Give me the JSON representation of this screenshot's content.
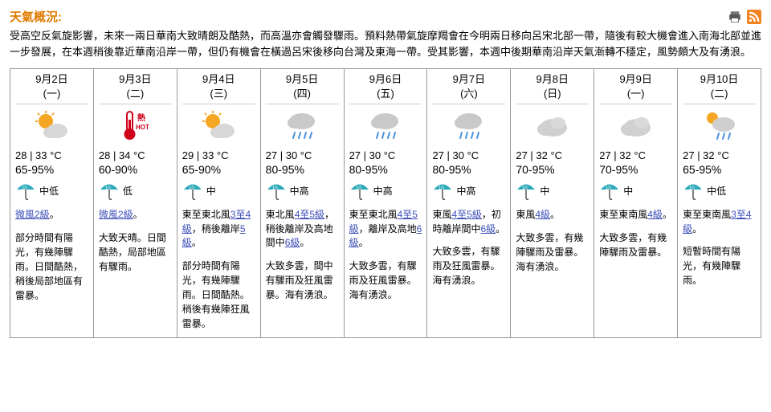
{
  "title": "天氣概況:",
  "overview": "受高空反氣旋影響，未來一兩日華南大致晴朗及酷熱，而高溫亦會觸發驟雨。預料熱帶氣旋摩羯會在今明兩日移向呂宋北部一帶，隨後有較大機會進入南海北部並進一步發展，在本週稍後靠近華南沿岸一帶，但仍有機會在橫過呂宋後移向台灣及東海一帶。受其影響，本週中後期華南沿岸天氣漸轉不穩定，風勢頗大及有湧浪。",
  "days": [
    {
      "date": "9月2日",
      "dow": "(一)",
      "icon": "sunny-cloud",
      "temp": "28 | 33 °C",
      "rh": "65-95%",
      "psr": "中低",
      "wind_pre": "",
      "wind_link": "微風2級",
      "wind_post": "。",
      "desc": "部分時間有陽光，有幾陣驟雨。日間酷熱，稍後局部地區有雷暴。"
    },
    {
      "date": "9月3日",
      "dow": "(二)",
      "icon": "hot",
      "temp": "28 | 34 °C",
      "rh": "60-90%",
      "psr": "低",
      "wind_pre": "",
      "wind_link": "微風2級",
      "wind_post": "。",
      "desc": "大致天晴。日間酷熱，局部地區有驟雨。"
    },
    {
      "date": "9月4日",
      "dow": "(三)",
      "icon": "sunny-cloud",
      "temp": "29 | 33 °C",
      "rh": "65-90%",
      "psr": "中",
      "wind_pre": "東至東北風",
      "wind_link": "3至4級",
      "wind_post": "，稍後離岸",
      "wind_link2": "5級",
      "wind_post2": "。",
      "desc": "部分時間有陽光，有幾陣驟雨。日間酷熱。稍後有幾陣狂風雷暴。"
    },
    {
      "date": "9月5日",
      "dow": "(四)",
      "icon": "rain",
      "temp": "27 | 30 °C",
      "rh": "80-95%",
      "psr": "中高",
      "wind_pre": "東北風",
      "wind_link": "4至5級",
      "wind_post": "，稍後離岸及高地間中",
      "wind_link2": "6級",
      "wind_post2": "。",
      "desc": "大致多雲，間中有驟雨及狂風雷暴。海有湧浪。"
    },
    {
      "date": "9月6日",
      "dow": "(五)",
      "icon": "rain",
      "temp": "27 | 30 °C",
      "rh": "80-95%",
      "psr": "中高",
      "wind_pre": "東至東北風",
      "wind_link": "4至5級",
      "wind_post": "，離岸及高地",
      "wind_link2": "6級",
      "wind_post2": "。",
      "desc": "大致多雲，有驟雨及狂風雷暴。海有湧浪。"
    },
    {
      "date": "9月7日",
      "dow": "(六)",
      "icon": "rain",
      "temp": "27 | 30 °C",
      "rh": "80-95%",
      "psr": "中高",
      "wind_pre": "東風",
      "wind_link": "4至5級",
      "wind_post": "，初時離岸間中",
      "wind_link2": "6級",
      "wind_post2": "。",
      "desc": "大致多雲，有驟雨及狂風雷暴。海有湧浪。"
    },
    {
      "date": "9月8日",
      "dow": "(日)",
      "icon": "cloud",
      "temp": "27 | 32 °C",
      "rh": "70-95%",
      "psr": "中",
      "wind_pre": "東風",
      "wind_link": "4級",
      "wind_post": "。",
      "desc": "大致多雲，有幾陣驟雨及雷暴。海有湧浪。"
    },
    {
      "date": "9月9日",
      "dow": "(一)",
      "icon": "cloud",
      "temp": "27 | 32 °C",
      "rh": "70-95%",
      "psr": "中",
      "wind_pre": "東至東南風",
      "wind_link": "4級",
      "wind_post": "。",
      "desc": "大致多雲，有幾陣驟雨及雷暴。"
    },
    {
      "date": "9月10日",
      "dow": "(二)",
      "icon": "sun-rain",
      "temp": "27 | 32 °C",
      "rh": "65-95%",
      "psr": "中低",
      "wind_pre": "東至東南風",
      "wind_link": "3至4級",
      "wind_post": "。",
      "desc": "短暫時間有陽光，有幾陣驟雨。"
    }
  ],
  "iconColors": {
    "sun": "#f5a623",
    "cloud": "#cfcfcf",
    "cloudDark": "#9aa0a6",
    "rain": "#4a90e2",
    "thermo": "#d0021b",
    "umbrella": "#2aa9b8",
    "rss": "#f58220"
  }
}
